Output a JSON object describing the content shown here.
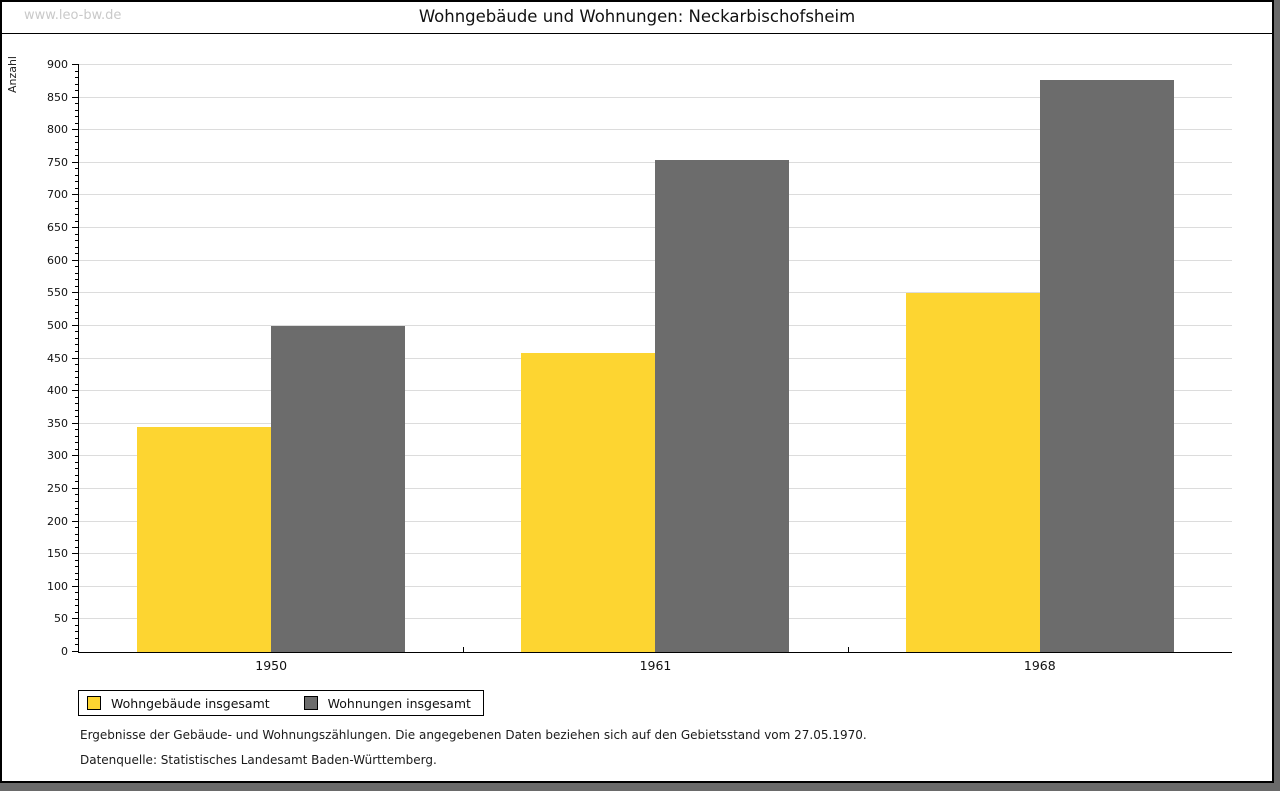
{
  "header": {
    "watermark": "www.leo-bw.de",
    "title": "Wohngebäude und Wohnungen: Neckarbischofsheim"
  },
  "chart_data": {
    "type": "bar",
    "title": "Wohngebäude und Wohnungen: Neckarbischofsheim",
    "categories": [
      "1950",
      "1961",
      "1968"
    ],
    "series": [
      {
        "name": "Wohngebäude insgesamt",
        "color": "#FDD531",
        "values": [
          345,
          458,
          550
        ]
      },
      {
        "name": "Wohnungen insgesamt",
        "color": "#6C6C6C",
        "values": [
          500,
          754,
          877
        ]
      }
    ],
    "xlabel": "",
    "ylabel": "Anzahl",
    "ylim": [
      0,
      900
    ],
    "ytick_step": 50,
    "minor_tick_step": 10,
    "grid": true,
    "gridline_color": "#dcdcdc",
    "legend_position": "bottom-left"
  },
  "footer": {
    "line1": "Ergebnisse der Gebäude- und Wohnungszählungen. Die angegebenen Daten beziehen sich auf den Gebietsstand vom 27.05.1970.",
    "line2": "Datenquelle: Statistisches Landesamt Baden-Württemberg."
  }
}
